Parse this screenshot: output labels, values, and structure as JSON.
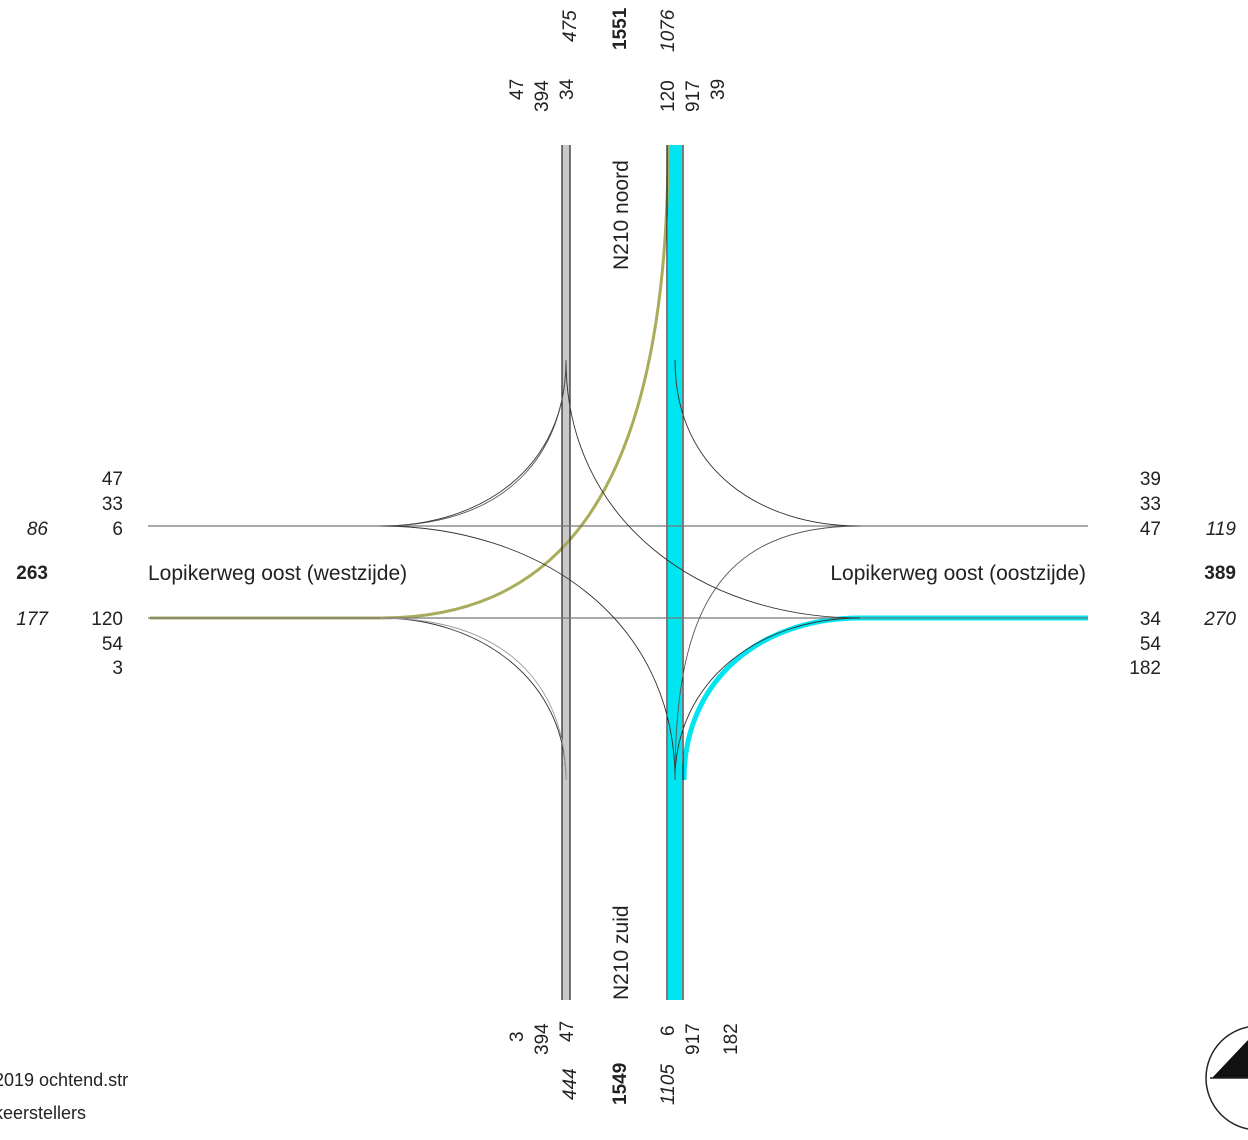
{
  "roads": {
    "north": "N210 noord",
    "south": "N210 zuid",
    "west": "Lopikerweg oost (westzijde)",
    "east": "Lopikerweg oost (oostzijde)"
  },
  "north": {
    "turns": [
      "47",
      "394",
      "34",
      "120",
      "917",
      "39"
    ],
    "in_total": "475",
    "sum": "1551",
    "out_total": "1076"
  },
  "south": {
    "turns": [
      "3",
      "394",
      "47",
      "6",
      "917",
      "182"
    ],
    "in_total": "444",
    "sum": "1549",
    "out_total": "1105"
  },
  "west": {
    "upper": [
      "47",
      "33",
      "6"
    ],
    "lower": [
      "120",
      "54",
      "3"
    ],
    "upper_total": "86",
    "sum": "263",
    "lower_total": "177"
  },
  "east": {
    "upper": [
      "39",
      "33",
      "47"
    ],
    "lower": [
      "34",
      "54",
      "182"
    ],
    "upper_total": "119",
    "sum": "389",
    "lower_total": "270"
  },
  "footer": {
    "file": "2019 ochtend.str",
    "source": "keerstellers"
  },
  "colors": {
    "highlight": "#00e5f0",
    "olive": "#a9ac5a",
    "grey_lane": "#c9c9c9",
    "line": "#222222"
  }
}
